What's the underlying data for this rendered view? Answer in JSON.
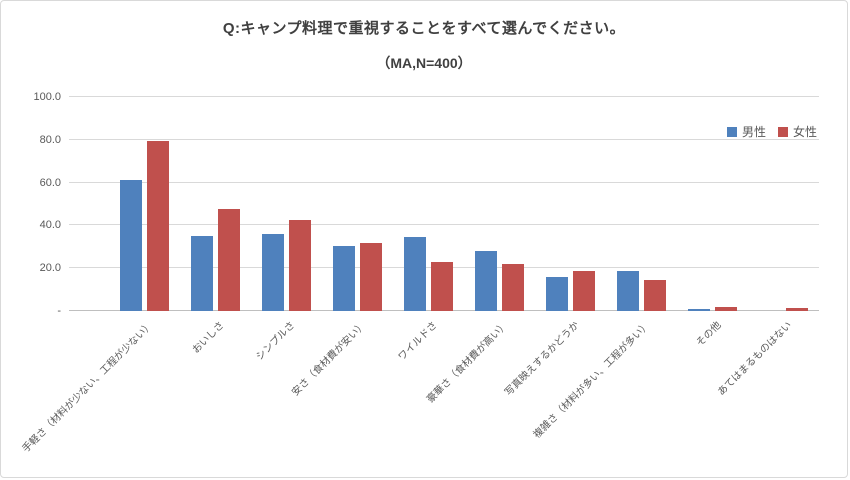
{
  "chart_data": {
    "type": "bar",
    "title": "Q:キャンプ料理で重視することをすべて選んでください。",
    "subtitle": "（MA,N=400）",
    "categories": [
      "手軽さ（材料が少ない、工程が少ない）",
      "おいしさ",
      "シンプルさ",
      "安さ（食材費が安い）",
      "ワイルドさ",
      "豪華さ（食材費が高い）",
      "写真映えするかどうか",
      "複雑さ（材料が多い、工程が多い）",
      "その他",
      "あてはまるものはない"
    ],
    "series": [
      {
        "name": "男性",
        "color": "#4F81BD",
        "values": [
          61,
          35,
          36,
          30.5,
          34.5,
          28,
          16,
          18.5,
          0.8,
          0
        ]
      },
      {
        "name": "女性",
        "color": "#C0504D",
        "values": [
          79.5,
          47.5,
          42.5,
          32,
          23,
          22,
          18.5,
          14.5,
          1.8,
          1.5
        ]
      }
    ],
    "ylim": [
      0,
      100
    ],
    "yticks": [
      "100.0",
      "80.0",
      "60.0",
      "40.0",
      "20.0",
      "-"
    ],
    "ytick_values": [
      100,
      80,
      60,
      40,
      20,
      0
    ],
    "grid": true,
    "legend_position": "top-right",
    "gridline_color": "#d9d9d9",
    "axis_color": "#bfbfbf",
    "text_color": "#595959"
  }
}
